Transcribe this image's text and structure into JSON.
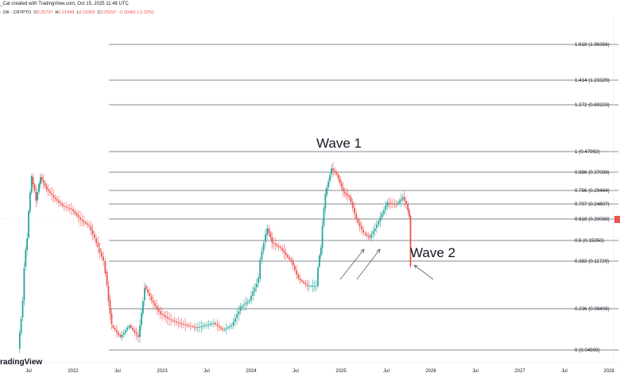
{
  "header": {
    "caption": "_Cat created with TradingView.com, Oct 15, 2025 11:48 UTC",
    "symbol_line": "- 1W - CRYPTO",
    "ohlc": {
      "o_label": "O",
      "o": "0.20737",
      "h_label": "H",
      "h": "0.21849",
      "l_label": "L",
      "l": "0.19369",
      "c_label": "C",
      "c": "0.20297",
      "change": "-0.00481 (-2.32%)"
    }
  },
  "footer": {
    "logo_text": "radingView"
  },
  "colors": {
    "up": "#26a69a",
    "down": "#ef5350",
    "fib_line": "#5d606b",
    "label_bg": "#ffffff",
    "axis_text": "#131722"
  },
  "chart_data": {
    "type": "line",
    "title": "",
    "x_ticks": [
      "Jul",
      "2022",
      "Jul",
      "2023",
      "Jul",
      "2024",
      "Jul",
      "2025",
      "Jul",
      "2026",
      "Jul",
      "2027",
      "Jul",
      "2028"
    ],
    "fib_levels": [
      {
        "ratio": 1.618,
        "label": "1.618 (1.96356)"
      },
      {
        "ratio": 1.414,
        "label": "1.414 (1.23329)"
      },
      {
        "ratio": 1.272,
        "label": "1.272 (0.89223)"
      },
      {
        "ratio": 1,
        "label": "1 (0.47992)"
      },
      {
        "ratio": 0.886,
        "label": "0.886 (0.37008)"
      },
      {
        "ratio": 0.786,
        "label": "0.786 (0.29464)"
      },
      {
        "ratio": 0.707,
        "label": "0.707 (0.24607)"
      },
      {
        "ratio": 0.618,
        "label": "0.618 (0.20088)"
      },
      {
        "ratio": 0.5,
        "label": "0.5 (0.15350)"
      },
      {
        "ratio": 0.382,
        "label": "0.382 (0.11729)"
      },
      {
        "ratio": 0.236,
        "label": "0.236 (0.08408)"
      },
      {
        "ratio": 0,
        "label": "0 (0.04909)"
      }
    ],
    "annotations": [
      {
        "text": "Wave 1"
      },
      {
        "text": "Wave 2"
      }
    ],
    "price_series": [
      [
        2021.4,
        0.05
      ],
      [
        2021.45,
        0.09
      ],
      [
        2021.5,
        0.16
      ],
      [
        2021.55,
        0.35
      ],
      [
        2021.6,
        0.26
      ],
      [
        2021.65,
        0.35
      ],
      [
        2021.72,
        0.3
      ],
      [
        2021.8,
        0.27
      ],
      [
        2021.9,
        0.24
      ],
      [
        2022.0,
        0.23
      ],
      [
        2022.1,
        0.2
      ],
      [
        2022.2,
        0.185
      ],
      [
        2022.3,
        0.14
      ],
      [
        2022.38,
        0.11
      ],
      [
        2022.45,
        0.07
      ],
      [
        2022.55,
        0.06
      ],
      [
        2022.65,
        0.07
      ],
      [
        2022.75,
        0.06
      ],
      [
        2022.82,
        0.1
      ],
      [
        2022.9,
        0.09
      ],
      [
        2023.0,
        0.08
      ],
      [
        2023.1,
        0.075
      ],
      [
        2023.2,
        0.072
      ],
      [
        2023.3,
        0.07
      ],
      [
        2023.4,
        0.068
      ],
      [
        2023.5,
        0.07
      ],
      [
        2023.6,
        0.072
      ],
      [
        2023.7,
        0.066
      ],
      [
        2023.8,
        0.07
      ],
      [
        2023.9,
        0.085
      ],
      [
        2024.0,
        0.09
      ],
      [
        2024.1,
        0.105
      ],
      [
        2024.2,
        0.18
      ],
      [
        2024.25,
        0.15
      ],
      [
        2024.35,
        0.14
      ],
      [
        2024.45,
        0.12
      ],
      [
        2024.55,
        0.105
      ],
      [
        2024.65,
        0.1
      ],
      [
        2024.75,
        0.1
      ],
      [
        2024.8,
        0.14
      ],
      [
        2024.85,
        0.28
      ],
      [
        2024.92,
        0.39
      ],
      [
        2024.98,
        0.36
      ],
      [
        2025.05,
        0.29
      ],
      [
        2025.12,
        0.27
      ],
      [
        2025.2,
        0.2
      ],
      [
        2025.28,
        0.17
      ],
      [
        2025.35,
        0.16
      ],
      [
        2025.45,
        0.195
      ],
      [
        2025.55,
        0.25
      ],
      [
        2025.65,
        0.245
      ],
      [
        2025.72,
        0.27
      ],
      [
        2025.76,
        0.245
      ],
      [
        2025.79,
        0.21
      ],
      [
        2025.8,
        0.11
      ]
    ]
  }
}
